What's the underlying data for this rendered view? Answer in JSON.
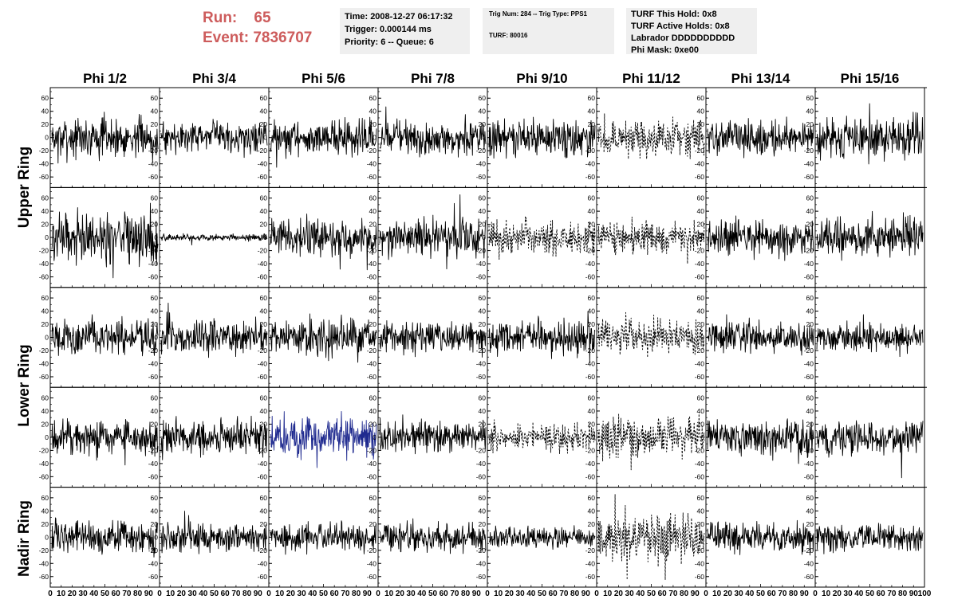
{
  "header": {
    "run_label": "Run:",
    "run_value": "65",
    "event_label": "Event:",
    "event_value": "7836707",
    "time": "Time: 2008-12-27 06:17:32",
    "trigger": "Trigger: 0.000144 ms",
    "priority": "Priority: 6 -- Queue: 6",
    "trig_num": "Trig Num: 284 -- Trig Type: PPS1",
    "turf": "TURF: 80016",
    "turf_this_hold": "TURF This Hold: 0x8",
    "turf_active_holds": "TURF Active Holds: 0x8",
    "labrador": "Labrador DDDDDDDDDD",
    "phi_mask": "Phi Mask: 0xe00"
  },
  "colors": {
    "run_text": "#cd5c5c",
    "info_box_bg": "#efefef",
    "trace_default": "#000000",
    "trace_highlight": "#1f2a8f"
  },
  "chart_data": {
    "type": "line",
    "columns": [
      "Phi 1/2",
      "Phi 3/4",
      "Phi 5/6",
      "Phi 7/8",
      "Phi 9/10",
      "Phi 11/12",
      "Phi 13/14",
      "Phi 15/16"
    ],
    "rows": [
      "Upper Ring",
      "Upper Ring",
      "Lower Ring",
      "Lower Ring",
      "Nadir Ring"
    ],
    "ring_labels": [
      "Upper Ring",
      "Lower Ring",
      "Nadir Ring"
    ],
    "xlim": [
      0,
      100
    ],
    "ylim": [
      -70,
      70
    ],
    "y_ticks": [
      -60,
      -40,
      -20,
      0,
      20,
      40,
      60
    ],
    "x_tick_labels": [
      "0",
      "10",
      "20",
      "30",
      "40",
      "50",
      "60",
      "70",
      "80",
      "90",
      "100"
    ],
    "panels": [
      [
        {
          "amp": 18,
          "style": "solid"
        },
        {
          "amp": 14,
          "style": "solid"
        },
        {
          "amp": 16,
          "style": "solid"
        },
        {
          "amp": 16,
          "style": "solid"
        },
        {
          "amp": 17,
          "style": "solid"
        },
        {
          "amp": 16,
          "style": "dashed"
        },
        {
          "amp": 15,
          "style": "solid"
        },
        {
          "amp": 19,
          "style": "solid"
        }
      ],
      [
        {
          "amp": 24,
          "style": "solid"
        },
        {
          "amp": 3,
          "style": "solid"
        },
        {
          "amp": 17,
          "style": "solid"
        },
        {
          "amp": 17,
          "style": "solid"
        },
        {
          "amp": 16,
          "style": "dashed"
        },
        {
          "amp": 14,
          "style": "dashed"
        },
        {
          "amp": 16,
          "style": "solid"
        },
        {
          "amp": 18,
          "style": "solid"
        }
      ],
      [
        {
          "amp": 16,
          "style": "solid"
        },
        {
          "amp": 15,
          "style": "solid"
        },
        {
          "amp": 17,
          "style": "solid"
        },
        {
          "amp": 14,
          "style": "solid"
        },
        {
          "amp": 15,
          "style": "solid"
        },
        {
          "amp": 16,
          "style": "dashed"
        },
        {
          "amp": 15,
          "style": "solid"
        },
        {
          "amp": 13,
          "style": "solid"
        }
      ],
      [
        {
          "amp": 16,
          "style": "solid"
        },
        {
          "amp": 16,
          "style": "solid"
        },
        {
          "amp": 20,
          "style": "blue"
        },
        {
          "amp": 14,
          "style": "solid"
        },
        {
          "amp": 12,
          "style": "dashed"
        },
        {
          "amp": 18,
          "style": "dashed"
        },
        {
          "amp": 17,
          "style": "solid"
        },
        {
          "amp": 16,
          "style": "solid"
        }
      ],
      [
        {
          "amp": 15,
          "style": "solid"
        },
        {
          "amp": 13,
          "style": "solid"
        },
        {
          "amp": 13,
          "style": "solid"
        },
        {
          "amp": 13,
          "style": "solid"
        },
        {
          "amp": 9,
          "style": "solid"
        },
        {
          "amp": 21,
          "style": "dashed"
        },
        {
          "amp": 14,
          "style": "solid"
        },
        {
          "amp": 13,
          "style": "solid"
        }
      ]
    ]
  }
}
